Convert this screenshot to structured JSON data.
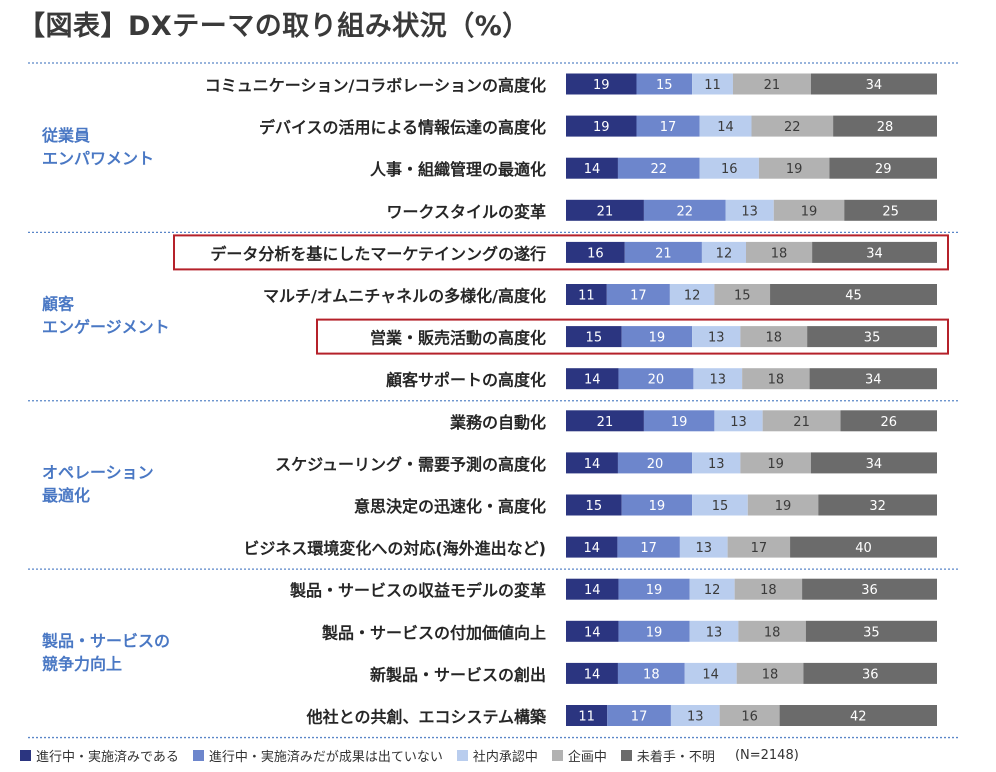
{
  "title": "【図表】DXテーマの取り組み状況（%）",
  "legend": {
    "items": [
      {
        "label": "進行中・実施済みである",
        "color": "#2b3580"
      },
      {
        "label": "進行中・実施済みだが成果は出ていない",
        "color": "#6d86cc"
      },
      {
        "label": "社内承認中",
        "color": "#b9cdee"
      },
      {
        "label": "企画中",
        "color": "#b2b2b2"
      },
      {
        "label": "未着手・不明",
        "color": "#6b6b6b"
      }
    ],
    "note": "(N=2148)"
  },
  "colors": {
    "group_label": "#4a78c4",
    "divider": "#5a86c8",
    "highlight": "#b5212a",
    "row_label": "#262626"
  },
  "chart_data": {
    "type": "bar",
    "orientation": "horizontal",
    "stacked": true,
    "unit": "%",
    "series": [
      {
        "name": "進行中・実施済みである"
      },
      {
        "name": "進行中・実施済みだが成果は出ていない"
      },
      {
        "name": "社内承認中"
      },
      {
        "name": "企画中"
      },
      {
        "name": "未着手・不明"
      }
    ],
    "groups": [
      {
        "label": "従業員\nエンパワメント",
        "rows": [
          {
            "label": "コミュニケーション/コラボレーションの高度化",
            "values": [
              19,
              15,
              11,
              21,
              34
            ]
          },
          {
            "label": "デバイスの活用による情報伝達の高度化",
            "values": [
              19,
              17,
              14,
              22,
              28
            ]
          },
          {
            "label": "人事・組織管理の最適化",
            "values": [
              14,
              22,
              16,
              19,
              29
            ]
          },
          {
            "label": "ワークスタイルの変革",
            "values": [
              21,
              22,
              13,
              19,
              25
            ]
          }
        ]
      },
      {
        "label": "顧客\nエンゲージメント",
        "rows": [
          {
            "label": "データ分析を基にしたマーケテインングの遂行",
            "values": [
              16,
              21,
              12,
              18,
              34
            ],
            "highlight": true
          },
          {
            "label": "マルチ/オムニチャネルの多様化/高度化",
            "values": [
              11,
              17,
              12,
              15,
              45
            ]
          },
          {
            "label": "営業・販売活動の高度化",
            "values": [
              15,
              19,
              13,
              18,
              35
            ],
            "highlight": true
          },
          {
            "label": "顧客サポートの高度化",
            "values": [
              14,
              20,
              13,
              18,
              34
            ]
          }
        ]
      },
      {
        "label": "オペレーション\n最適化",
        "rows": [
          {
            "label": "業務の自動化",
            "values": [
              21,
              19,
              13,
              21,
              26
            ]
          },
          {
            "label": "スケジューリング・需要予測の高度化",
            "values": [
              14,
              20,
              13,
              19,
              34
            ]
          },
          {
            "label": "意思決定の迅速化・高度化",
            "values": [
              15,
              19,
              15,
              19,
              32
            ]
          },
          {
            "label": "ビジネス環境変化への対応(海外進出など)",
            "values": [
              14,
              17,
              13,
              17,
              40
            ]
          }
        ]
      },
      {
        "label": "製品・サービスの\n競争力向上",
        "rows": [
          {
            "label": "製品・サービスの収益モデルの変革",
            "values": [
              14,
              19,
              12,
              18,
              36
            ]
          },
          {
            "label": "製品・サービスの付加価値向上",
            "values": [
              14,
              19,
              13,
              18,
              35
            ]
          },
          {
            "label": "新製品・サービスの創出",
            "values": [
              14,
              18,
              14,
              18,
              36
            ]
          },
          {
            "label": "他社との共創、エコシステム構築",
            "values": [
              11,
              17,
              13,
              16,
              42
            ]
          }
        ]
      }
    ]
  }
}
